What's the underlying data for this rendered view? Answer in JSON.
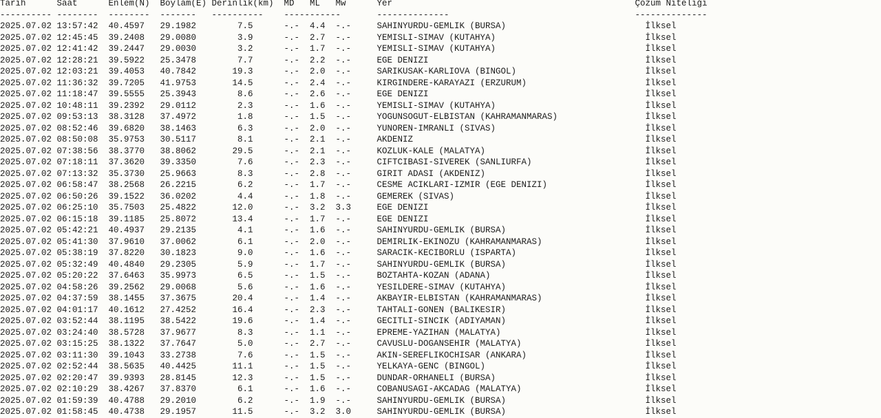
{
  "header": {
    "columns": [
      "Tarih",
      "Saat",
      "Enlem(N)",
      "Boylam(E)",
      "Derinlik(km)",
      "MD",
      "ML",
      "Mw",
      "Yer",
      "Çözüm Niteliği"
    ],
    "separators": [
      "----------",
      "--------",
      "--------",
      "-------",
      "----------",
      "-----------",
      "--------------",
      "--------------"
    ]
  },
  "rows": [
    [
      "2025.07.02",
      "13:57:42",
      "40.4597",
      "29.1982",
      "7.5",
      "-.-",
      "4.4",
      "-.-",
      "SAHINYURDU-GEMLIK (BURSA)",
      "İlksel"
    ],
    [
      "2025.07.02",
      "12:45:45",
      "39.2408",
      "29.0080",
      "3.9",
      "-.-",
      "2.7",
      "-.-",
      "YEMISLI-SIMAV (KUTAHYA)",
      "İlksel"
    ],
    [
      "2025.07.02",
      "12:41:42",
      "39.2447",
      "29.0030",
      "3.2",
      "-.-",
      "1.7",
      "-.-",
      "YEMISLI-SIMAV (KUTAHYA)",
      "İlksel"
    ],
    [
      "2025.07.02",
      "12:28:21",
      "39.5922",
      "25.3478",
      "7.7",
      "-.-",
      "2.2",
      "-.-",
      "EGE DENIZI",
      "İlksel"
    ],
    [
      "2025.07.02",
      "12:03:21",
      "39.4053",
      "40.7842",
      "19.3",
      "-.-",
      "2.0",
      "-.-",
      "SARIKUSAK-KARLIOVA (BINGOL)",
      "İlksel"
    ],
    [
      "2025.07.02",
      "11:36:32",
      "39.7205",
      "41.9753",
      "14.5",
      "-.-",
      "2.4",
      "-.-",
      "KIRGINDERE-KARAYAZI (ERZURUM)",
      "İlksel"
    ],
    [
      "2025.07.02",
      "11:18:47",
      "39.5555",
      "25.3943",
      "8.6",
      "-.-",
      "2.6",
      "-.-",
      "EGE DENIZI",
      "İlksel"
    ],
    [
      "2025.07.02",
      "10:48:11",
      "39.2392",
      "29.0112",
      "2.3",
      "-.-",
      "1.6",
      "-.-",
      "YEMISLI-SIMAV (KUTAHYA)",
      "İlksel"
    ],
    [
      "2025.07.02",
      "09:53:13",
      "38.3128",
      "37.4972",
      "1.8",
      "-.-",
      "1.5",
      "-.-",
      "YOGUNSOGUT-ELBISTAN (KAHRAMANMARAS)",
      "İlksel"
    ],
    [
      "2025.07.02",
      "08:52:46",
      "39.6820",
      "38.1463",
      "6.3",
      "-.-",
      "2.0",
      "-.-",
      "YUNOREN-IMRANLI (SIVAS)",
      "İlksel"
    ],
    [
      "2025.07.02",
      "08:50:08",
      "35.9753",
      "30.5117",
      "8.1",
      "-.-",
      "2.1",
      "-.-",
      "AKDENIZ",
      "İlksel"
    ],
    [
      "2025.07.02",
      "07:38:56",
      "38.3770",
      "38.8062",
      "29.5",
      "-.-",
      "2.1",
      "-.-",
      "KOZLUK-KALE (MALATYA)",
      "İlksel"
    ],
    [
      "2025.07.02",
      "07:18:11",
      "37.3620",
      "39.3350",
      "7.6",
      "-.-",
      "2.3",
      "-.-",
      "CIFTCIBASI-SIVEREK (SANLIURFA)",
      "İlksel"
    ],
    [
      "2025.07.02",
      "07:13:32",
      "35.3730",
      "25.9663",
      "8.3",
      "-.-",
      "2.8",
      "-.-",
      "GIRIT ADASI (AKDENIZ)",
      "İlksel"
    ],
    [
      "2025.07.02",
      "06:58:47",
      "38.2568",
      "26.2215",
      "6.2",
      "-.-",
      "1.7",
      "-.-",
      "CESME ACIKLARI-IZMIR (EGE DENIZI)",
      "İlksel"
    ],
    [
      "2025.07.02",
      "06:50:26",
      "39.1522",
      "36.0202",
      "4.4",
      "-.-",
      "1.8",
      "-.-",
      "GEMEREK (SIVAS)",
      "İlksel"
    ],
    [
      "2025.07.02",
      "06:25:10",
      "35.7503",
      "25.4822",
      "12.0",
      "-.-",
      "3.2",
      "3.3",
      "EGE DENIZI",
      "İlksel"
    ],
    [
      "2025.07.02",
      "06:15:18",
      "39.1185",
      "25.8072",
      "13.4",
      "-.-",
      "1.7",
      "-.-",
      "EGE DENIZI",
      "İlksel"
    ],
    [
      "2025.07.02",
      "05:42:21",
      "40.4937",
      "29.2135",
      "4.1",
      "-.-",
      "1.6",
      "-.-",
      "SAHINYURDU-GEMLIK (BURSA)",
      "İlksel"
    ],
    [
      "2025.07.02",
      "05:41:30",
      "37.9610",
      "37.0062",
      "6.1",
      "-.-",
      "2.0",
      "-.-",
      "DEMIRLIK-EKINOZU (KAHRAMANMARAS)",
      "İlksel"
    ],
    [
      "2025.07.02",
      "05:38:19",
      "37.8220",
      "30.1823",
      "9.0",
      "-.-",
      "1.6",
      "-.-",
      "SARACIK-KECIBORLU (ISPARTA)",
      "İlksel"
    ],
    [
      "2025.07.02",
      "05:32:49",
      "40.4840",
      "29.2305",
      "5.9",
      "-.-",
      "1.7",
      "-.-",
      "SAHINYURDU-GEMLIK (BURSA)",
      "İlksel"
    ],
    [
      "2025.07.02",
      "05:20:22",
      "37.6463",
      "35.9973",
      "6.5",
      "-.-",
      "1.5",
      "-.-",
      "BOZTAHTA-KOZAN (ADANA)",
      "İlksel"
    ],
    [
      "2025.07.02",
      "04:58:26",
      "39.2562",
      "29.0068",
      "5.6",
      "-.-",
      "1.6",
      "-.-",
      "YESILDERE-SIMAV (KUTAHYA)",
      "İlksel"
    ],
    [
      "2025.07.02",
      "04:37:59",
      "38.1455",
      "37.3675",
      "20.4",
      "-.-",
      "1.4",
      "-.-",
      "AKBAYIR-ELBISTAN (KAHRAMANMARAS)",
      "İlksel"
    ],
    [
      "2025.07.02",
      "04:01:17",
      "40.1612",
      "27.4252",
      "16.4",
      "-.-",
      "2.3",
      "-.-",
      "TAHTALI-GONEN (BALIKESIR)",
      "İlksel"
    ],
    [
      "2025.07.02",
      "03:52:44",
      "38.1195",
      "38.5422",
      "19.6",
      "-.-",
      "1.4",
      "-.-",
      "GECITLI-SINCIK (ADIYAMAN)",
      "İlksel"
    ],
    [
      "2025.07.02",
      "03:24:40",
      "38.5728",
      "37.9677",
      "8.3",
      "-.-",
      "1.1",
      "-.-",
      "EPREME-YAZIHAN (MALATYA)",
      "İlksel"
    ],
    [
      "2025.07.02",
      "03:15:25",
      "38.1322",
      "37.7647",
      "5.0",
      "-.-",
      "2.7",
      "-.-",
      "CAVUSLU-DOGANSEHIR (MALATYA)",
      "İlksel"
    ],
    [
      "2025.07.02",
      "03:11:30",
      "39.1043",
      "33.2738",
      "7.6",
      "-.-",
      "1.5",
      "-.-",
      "AKIN-SEREFLIKOCHISAR (ANKARA)",
      "İlksel"
    ],
    [
      "2025.07.02",
      "02:52:44",
      "38.5635",
      "40.4425",
      "11.1",
      "-.-",
      "1.5",
      "-.-",
      "YELKAYA-GENC (BINGOL)",
      "İlksel"
    ],
    [
      "2025.07.02",
      "02:20:47",
      "39.9393",
      "28.8145",
      "12.3",
      "-.-",
      "1.5",
      "-.-",
      "DUNDAR-ORHANELI (BURSA)",
      "İlksel"
    ],
    [
      "2025.07.02",
      "02:10:29",
      "38.4267",
      "37.8370",
      "6.1",
      "-.-",
      "1.6",
      "-.-",
      "COBANUSAGI-AKCADAG (MALATYA)",
      "İlksel"
    ],
    [
      "2025.07.02",
      "01:59:39",
      "40.4788",
      "29.2010",
      "6.2",
      "-.-",
      "1.9",
      "-.-",
      "SAHINYURDU-GEMLIK (BURSA)",
      "İlksel"
    ],
    [
      "2025.07.02",
      "01:58:45",
      "40.4738",
      "29.1957",
      "11.5",
      "-.-",
      "3.2",
      "3.0",
      "SAHINYURDU-GEMLIK (BURSA)",
      "İlksel"
    ]
  ]
}
